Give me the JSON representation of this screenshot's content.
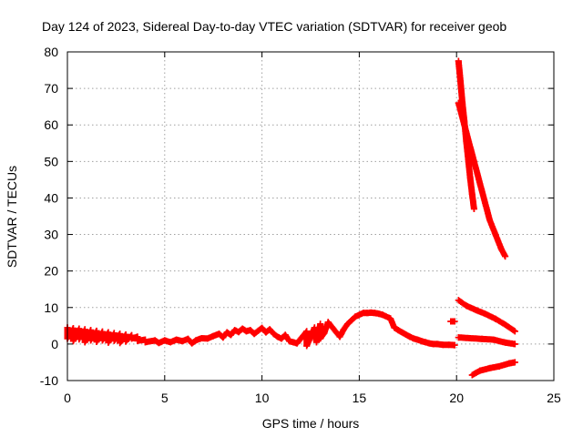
{
  "chart_data": {
    "type": "scatter",
    "title": "Day 124 of 2023, Sidereal Day-to-day VTEC variation (SDTVAR) for receiver geob",
    "xlabel": "GPS time / hours",
    "ylabel": "SDTVAR / TECUs",
    "xlim": [
      0,
      25
    ],
    "ylim": [
      -10,
      80
    ],
    "xticks": [
      "0",
      "5",
      "10",
      "15",
      "20",
      "25"
    ],
    "yticks": [
      "-10",
      "0",
      "10",
      "20",
      "30",
      "40",
      "50",
      "60",
      "70",
      "80"
    ],
    "grid": true,
    "marker": "+",
    "color": "#ff0000",
    "series": [
      {
        "name": "main-daily-band",
        "points": [
          [
            0.0,
            4.5
          ],
          [
            0.0,
            1.5
          ],
          [
            0.3,
            4.3
          ],
          [
            0.3,
            0.8
          ],
          [
            0.6,
            4.2
          ],
          [
            0.6,
            1.3
          ],
          [
            0.9,
            4.0
          ],
          [
            0.9,
            0.5
          ],
          [
            1.2,
            3.8
          ],
          [
            1.2,
            1.0
          ],
          [
            1.5,
            3.6
          ],
          [
            1.5,
            0.6
          ],
          [
            1.8,
            3.4
          ],
          [
            1.8,
            1.0
          ],
          [
            2.1,
            3.2
          ],
          [
            2.1,
            0.4
          ],
          [
            2.4,
            3.0
          ],
          [
            2.4,
            0.9
          ],
          [
            2.7,
            2.8
          ],
          [
            2.7,
            0.3
          ],
          [
            3.0,
            2.6
          ],
          [
            3.0,
            0.7
          ],
          [
            3.3,
            2.4
          ],
          [
            3.3,
            1.5
          ],
          [
            3.6,
            2.0
          ],
          [
            3.6,
            0.9
          ],
          [
            4.0,
            1.2
          ],
          [
            4.0,
            0.5
          ],
          [
            4.5,
            1.0
          ],
          [
            4.7,
            0.3
          ],
          [
            5.0,
            1.0
          ],
          [
            5.3,
            0.5
          ],
          [
            5.6,
            1.2
          ],
          [
            5.9,
            0.8
          ],
          [
            6.2,
            1.4
          ],
          [
            6.4,
            0.2
          ],
          [
            6.6,
            1.0
          ],
          [
            6.9,
            1.6
          ],
          [
            7.2,
            1.5
          ],
          [
            7.5,
            2.2
          ],
          [
            7.8,
            2.8
          ],
          [
            8.0,
            1.8
          ],
          [
            8.2,
            3.2
          ],
          [
            8.4,
            2.5
          ],
          [
            8.6,
            3.8
          ],
          [
            8.8,
            3.3
          ],
          [
            9.0,
            4.2
          ],
          [
            9.2,
            3.5
          ],
          [
            9.4,
            3.8
          ],
          [
            9.6,
            2.8
          ],
          [
            9.8,
            3.6
          ],
          [
            10.0,
            4.4
          ],
          [
            10.2,
            3.2
          ],
          [
            10.4,
            4.0
          ],
          [
            10.6,
            2.8
          ],
          [
            10.8,
            2.0
          ],
          [
            11.0,
            1.5
          ],
          [
            11.2,
            2.5
          ],
          [
            11.4,
            0.8
          ],
          [
            11.6,
            0.5
          ],
          [
            11.8,
            0.2
          ],
          [
            12.3,
            3.5
          ],
          [
            12.3,
            -0.5
          ],
          [
            12.5,
            2.0
          ],
          [
            12.7,
            4.5
          ],
          [
            12.8,
            0.5
          ],
          [
            13.0,
            5.5
          ],
          [
            13.0,
            1.5
          ],
          [
            13.2,
            3.0
          ],
          [
            13.4,
            6.0
          ],
          [
            14.0,
            2.0
          ],
          [
            14.2,
            4.0
          ],
          [
            14.4,
            5.5
          ],
          [
            14.6,
            6.5
          ],
          [
            14.8,
            7.5
          ],
          [
            15.0,
            8.0
          ],
          [
            15.2,
            8.5
          ],
          [
            15.4,
            8.5
          ],
          [
            15.6,
            8.6
          ],
          [
            15.8,
            8.5
          ],
          [
            16.0,
            8.3
          ],
          [
            16.2,
            8.0
          ],
          [
            16.6,
            7.0
          ],
          [
            16.8,
            4.5
          ],
          [
            17.0,
            3.8
          ],
          [
            17.2,
            3.2
          ],
          [
            17.4,
            2.6
          ],
          [
            17.6,
            2.0
          ],
          [
            17.8,
            1.5
          ],
          [
            18.0,
            1.2
          ],
          [
            18.2,
            0.8
          ],
          [
            18.4,
            0.5
          ],
          [
            18.6,
            0.2
          ],
          [
            18.8,
            0.0
          ],
          [
            19.0,
            0.0
          ],
          [
            19.3,
            -0.2
          ],
          [
            19.6,
            -0.2
          ],
          [
            19.9,
            -0.3
          ]
        ]
      },
      {
        "name": "isolated-segment",
        "points": [
          [
            19.7,
            6.2
          ],
          [
            19.9,
            6.2
          ]
        ]
      },
      {
        "name": "late-steep-trace-1",
        "points": [
          [
            20.1,
            77.5
          ],
          [
            20.2,
            72.0
          ],
          [
            20.3,
            66.0
          ],
          [
            20.4,
            61.0
          ],
          [
            20.5,
            55.5
          ],
          [
            20.6,
            50.5
          ],
          [
            20.7,
            45.5
          ],
          [
            20.8,
            41.0
          ],
          [
            20.9,
            37.0
          ]
        ]
      },
      {
        "name": "late-steep-trace-2",
        "points": [
          [
            20.1,
            66.0
          ],
          [
            20.5,
            58.0
          ],
          [
            20.9,
            50.0
          ],
          [
            21.3,
            42.0
          ],
          [
            21.7,
            34.0
          ],
          [
            22.0,
            30.0
          ],
          [
            22.3,
            26.0
          ],
          [
            22.5,
            24.0
          ]
        ]
      },
      {
        "name": "late-decline-trace",
        "points": [
          [
            20.1,
            12.0
          ],
          [
            20.5,
            10.5
          ],
          [
            21.0,
            9.3
          ],
          [
            21.5,
            8.2
          ],
          [
            22.0,
            6.9
          ],
          [
            22.5,
            5.3
          ],
          [
            23.0,
            3.5
          ]
        ]
      },
      {
        "name": "late-flat-trace",
        "points": [
          [
            20.1,
            1.8
          ],
          [
            20.7,
            1.6
          ],
          [
            21.3,
            1.4
          ],
          [
            21.9,
            1.2
          ],
          [
            22.5,
            0.4
          ],
          [
            23.0,
            0.0
          ]
        ]
      },
      {
        "name": "late-negative-trace",
        "points": [
          [
            20.8,
            -8.5
          ],
          [
            21.2,
            -7.3
          ],
          [
            21.7,
            -6.6
          ],
          [
            22.2,
            -6.1
          ],
          [
            22.7,
            -5.3
          ],
          [
            23.0,
            -5.0
          ]
        ]
      }
    ]
  }
}
